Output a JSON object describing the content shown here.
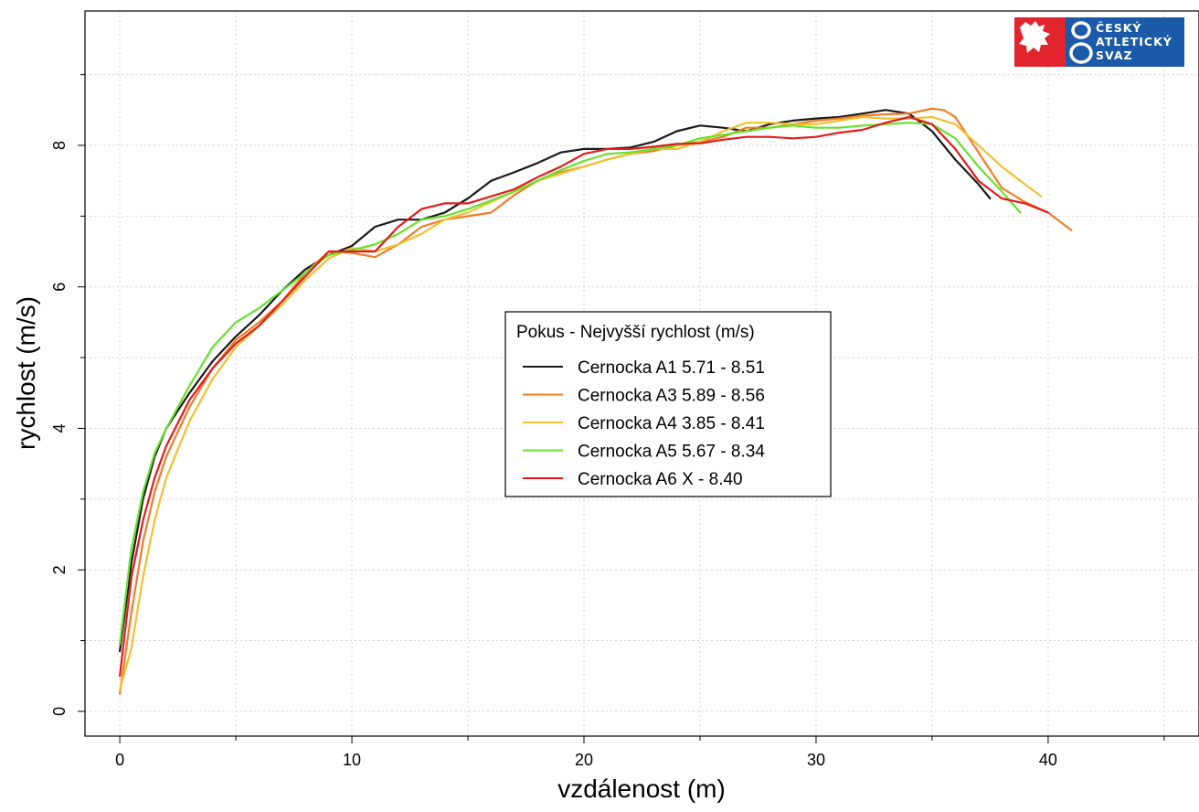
{
  "chart_data": {
    "type": "line",
    "xlabel": "vzdálenost (m)",
    "ylabel": "rychlost (m/s)",
    "xlim": [
      -1.5,
      46.5
    ],
    "ylim": [
      -0.35,
      9.9
    ],
    "x_ticks": [
      0,
      10,
      20,
      30,
      40
    ],
    "y_ticks": [
      0,
      2,
      4,
      6,
      8
    ],
    "x_minor_grid": [
      5,
      15,
      25,
      35,
      45
    ],
    "y_minor_grid": [
      1,
      3,
      5,
      7,
      9
    ],
    "grid": true,
    "legend": {
      "title": "Pokus - Nejvyšší rychlost (m/s)",
      "position": "center"
    },
    "series": [
      {
        "name": "Cernocka A1 5.71 - 8.51",
        "color": "#1a1a1a",
        "points": [
          [
            0,
            0.85
          ],
          [
            0.5,
            2.1
          ],
          [
            1,
            3.0
          ],
          [
            1.5,
            3.6
          ],
          [
            2,
            4.0
          ],
          [
            3,
            4.5
          ],
          [
            4,
            4.95
          ],
          [
            5,
            5.3
          ],
          [
            6,
            5.6
          ],
          [
            7,
            5.95
          ],
          [
            8,
            6.25
          ],
          [
            9,
            6.45
          ],
          [
            10,
            6.58
          ],
          [
            11,
            6.85
          ],
          [
            12,
            6.95
          ],
          [
            13,
            6.95
          ],
          [
            14,
            7.05
          ],
          [
            15,
            7.25
          ],
          [
            16,
            7.5
          ],
          [
            17,
            7.62
          ],
          [
            18,
            7.75
          ],
          [
            19,
            7.9
          ],
          [
            20,
            7.95
          ],
          [
            21,
            7.95
          ],
          [
            22,
            7.97
          ],
          [
            23,
            8.05
          ],
          [
            24,
            8.2
          ],
          [
            25,
            8.28
          ],
          [
            26,
            8.25
          ],
          [
            27,
            8.2
          ],
          [
            28,
            8.3
          ],
          [
            29,
            8.35
          ],
          [
            30,
            8.38
          ],
          [
            31,
            8.4
          ],
          [
            32,
            8.45
          ],
          [
            33,
            8.5
          ],
          [
            34,
            8.45
          ],
          [
            35,
            8.2
          ],
          [
            36,
            7.8
          ],
          [
            37,
            7.45
          ],
          [
            37.5,
            7.25
          ]
        ]
      },
      {
        "name": "Cernocka A3 5.89 - 8.56",
        "color": "#f07c28",
        "points": [
          [
            0,
            0.25
          ],
          [
            0.5,
            1.4
          ],
          [
            1,
            2.4
          ],
          [
            1.5,
            3.1
          ],
          [
            2,
            3.6
          ],
          [
            3,
            4.3
          ],
          [
            4,
            4.85
          ],
          [
            5,
            5.25
          ],
          [
            6,
            5.5
          ],
          [
            7,
            5.8
          ],
          [
            8,
            6.2
          ],
          [
            9,
            6.5
          ],
          [
            10,
            6.48
          ],
          [
            11,
            6.42
          ],
          [
            12,
            6.6
          ],
          [
            13,
            6.85
          ],
          [
            14,
            6.95
          ],
          [
            15,
            7.0
          ],
          [
            16,
            7.05
          ],
          [
            17,
            7.3
          ],
          [
            18,
            7.5
          ],
          [
            19,
            7.62
          ],
          [
            20,
            7.7
          ],
          [
            21,
            7.8
          ],
          [
            22,
            7.88
          ],
          [
            23,
            7.92
          ],
          [
            24,
            8.0
          ],
          [
            25,
            8.05
          ],
          [
            26,
            8.12
          ],
          [
            27,
            8.25
          ],
          [
            28,
            8.25
          ],
          [
            29,
            8.3
          ],
          [
            30,
            8.35
          ],
          [
            31,
            8.38
          ],
          [
            32,
            8.42
          ],
          [
            33,
            8.44
          ],
          [
            34,
            8.45
          ],
          [
            35,
            8.52
          ],
          [
            35.5,
            8.5
          ],
          [
            36,
            8.4
          ],
          [
            37,
            7.9
          ],
          [
            38,
            7.4
          ],
          [
            39,
            7.2
          ],
          [
            40,
            7.05
          ],
          [
            41,
            6.8
          ]
        ]
      },
      {
        "name": "Cernocka A4 3.85 - 8.41",
        "color": "#f2c02c",
        "points": [
          [
            0,
            0.3
          ],
          [
            0.5,
            0.9
          ],
          [
            1,
            1.9
          ],
          [
            1.5,
            2.7
          ],
          [
            2,
            3.3
          ],
          [
            3,
            4.1
          ],
          [
            4,
            4.7
          ],
          [
            5,
            5.15
          ],
          [
            6,
            5.45
          ],
          [
            7,
            5.75
          ],
          [
            8,
            6.1
          ],
          [
            9,
            6.4
          ],
          [
            10,
            6.55
          ],
          [
            11,
            6.5
          ],
          [
            12,
            6.6
          ],
          [
            13,
            6.75
          ],
          [
            14,
            6.95
          ],
          [
            15,
            7.05
          ],
          [
            16,
            7.2
          ],
          [
            17,
            7.35
          ],
          [
            18,
            7.5
          ],
          [
            19,
            7.6
          ],
          [
            20,
            7.7
          ],
          [
            21,
            7.8
          ],
          [
            22,
            7.88
          ],
          [
            23,
            7.95
          ],
          [
            24,
            7.95
          ],
          [
            25,
            8.05
          ],
          [
            26,
            8.2
          ],
          [
            27,
            8.32
          ],
          [
            28,
            8.32
          ],
          [
            29,
            8.3
          ],
          [
            30,
            8.3
          ],
          [
            31,
            8.35
          ],
          [
            32,
            8.4
          ],
          [
            33,
            8.38
          ],
          [
            34,
            8.38
          ],
          [
            35,
            8.4
          ],
          [
            36,
            8.3
          ],
          [
            37,
            8.0
          ],
          [
            38,
            7.7
          ],
          [
            39,
            7.45
          ],
          [
            39.7,
            7.28
          ]
        ]
      },
      {
        "name": "Cernocka A5 5.67 - 8.34",
        "color": "#66e22a",
        "points": [
          [
            0,
            0.95
          ],
          [
            0.5,
            2.3
          ],
          [
            1,
            3.1
          ],
          [
            1.5,
            3.65
          ],
          [
            2,
            4.0
          ],
          [
            3,
            4.6
          ],
          [
            4,
            5.15
          ],
          [
            5,
            5.5
          ],
          [
            6,
            5.7
          ],
          [
            7,
            5.95
          ],
          [
            8,
            6.2
          ],
          [
            9,
            6.45
          ],
          [
            10,
            6.52
          ],
          [
            11,
            6.6
          ],
          [
            12,
            6.75
          ],
          [
            13,
            6.95
          ],
          [
            14,
            7.0
          ],
          [
            15,
            7.1
          ],
          [
            16,
            7.22
          ],
          [
            17,
            7.35
          ],
          [
            18,
            7.5
          ],
          [
            19,
            7.65
          ],
          [
            20,
            7.78
          ],
          [
            21,
            7.88
          ],
          [
            22,
            7.9
          ],
          [
            23,
            7.95
          ],
          [
            24,
            8.0
          ],
          [
            25,
            8.1
          ],
          [
            26,
            8.15
          ],
          [
            27,
            8.2
          ],
          [
            28,
            8.25
          ],
          [
            29,
            8.28
          ],
          [
            30,
            8.25
          ],
          [
            31,
            8.25
          ],
          [
            32,
            8.28
          ],
          [
            33,
            8.3
          ],
          [
            34,
            8.32
          ],
          [
            35,
            8.3
          ],
          [
            36,
            8.1
          ],
          [
            37,
            7.7
          ],
          [
            38,
            7.35
          ],
          [
            38.8,
            7.05
          ]
        ]
      },
      {
        "name": "Cernocka A6 X - 8.40",
        "color": "#e31a1c",
        "points": [
          [
            0,
            0.5
          ],
          [
            0.5,
            1.9
          ],
          [
            1,
            2.7
          ],
          [
            1.5,
            3.3
          ],
          [
            2,
            3.75
          ],
          [
            3,
            4.4
          ],
          [
            4,
            4.85
          ],
          [
            5,
            5.2
          ],
          [
            6,
            5.45
          ],
          [
            7,
            5.8
          ],
          [
            8,
            6.15
          ],
          [
            9,
            6.5
          ],
          [
            10,
            6.5
          ],
          [
            11,
            6.5
          ],
          [
            12,
            6.85
          ],
          [
            13,
            7.1
          ],
          [
            14,
            7.18
          ],
          [
            15,
            7.18
          ],
          [
            16,
            7.28
          ],
          [
            17,
            7.38
          ],
          [
            18,
            7.55
          ],
          [
            19,
            7.7
          ],
          [
            20,
            7.88
          ],
          [
            21,
            7.95
          ],
          [
            22,
            7.95
          ],
          [
            23,
            7.98
          ],
          [
            24,
            8.02
          ],
          [
            25,
            8.03
          ],
          [
            26,
            8.08
          ],
          [
            27,
            8.12
          ],
          [
            28,
            8.12
          ],
          [
            29,
            8.1
          ],
          [
            30,
            8.12
          ],
          [
            31,
            8.18
          ],
          [
            32,
            8.22
          ],
          [
            33,
            8.32
          ],
          [
            34,
            8.4
          ],
          [
            35,
            8.3
          ],
          [
            36,
            7.95
          ],
          [
            37,
            7.5
          ],
          [
            38,
            7.25
          ],
          [
            39,
            7.18
          ],
          [
            40,
            7.05
          ]
        ]
      }
    ]
  },
  "logo": {
    "lines": [
      "ČESKÝ",
      "ATLETICKÝ",
      "SVAZ"
    ],
    "colors": {
      "red": "#e2252d",
      "blue": "#1b5aa8"
    }
  }
}
